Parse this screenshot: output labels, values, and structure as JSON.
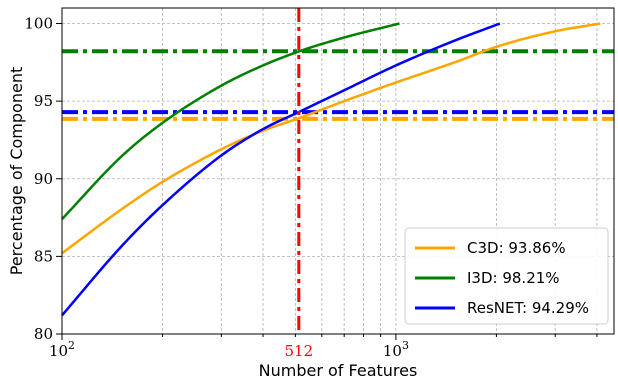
{
  "chart_data": {
    "type": "line",
    "xlabel": "Number of Features",
    "ylabel": "Percentage of Component",
    "xscale": "log",
    "xlim": [
      100,
      4500
    ],
    "ylim": [
      80,
      101
    ],
    "grid": true,
    "legend_position": "bottom-right",
    "x_tick_labels": [
      {
        "value": 100,
        "base": "10",
        "exp": "2"
      },
      {
        "value": 1000,
        "base": "10",
        "exp": "3"
      }
    ],
    "y_ticks": [
      80,
      85,
      90,
      95,
      100
    ],
    "series": [
      {
        "name": "C3D: 93.86%",
        "color": "#ffa500",
        "x": [
          100,
          150,
          200,
          300,
          400,
          512,
          700,
          1000,
          1500,
          2000,
          3000,
          4096
        ],
        "y": [
          85.2,
          88.0,
          89.8,
          91.9,
          93.1,
          93.9,
          95.0,
          96.2,
          97.5,
          98.5,
          99.5,
          100.0
        ]
      },
      {
        "name": "I3D: 98.21%",
        "color": "#008000",
        "x": [
          100,
          150,
          200,
          300,
          400,
          512,
          700,
          1024
        ],
        "y": [
          87.4,
          91.4,
          93.6,
          96.0,
          97.3,
          98.2,
          99.1,
          100.0
        ]
      },
      {
        "name": "ResNET: 94.29%",
        "color": "#0000ff",
        "x": [
          100,
          150,
          200,
          300,
          400,
          512,
          700,
          1000,
          1500,
          2048
        ],
        "y": [
          81.2,
          85.6,
          88.3,
          91.5,
          93.2,
          94.3,
          95.7,
          97.3,
          98.9,
          100.0
        ]
      }
    ],
    "reference_lines": {
      "vertical": {
        "x": 512,
        "color": "#ff0000",
        "label": "512"
      },
      "horizontal": [
        {
          "y": 98.21,
          "color": "#008000"
        },
        {
          "y": 94.29,
          "color": "#0000ff"
        },
        {
          "y": 93.86,
          "color": "#ffa500"
        }
      ]
    }
  }
}
